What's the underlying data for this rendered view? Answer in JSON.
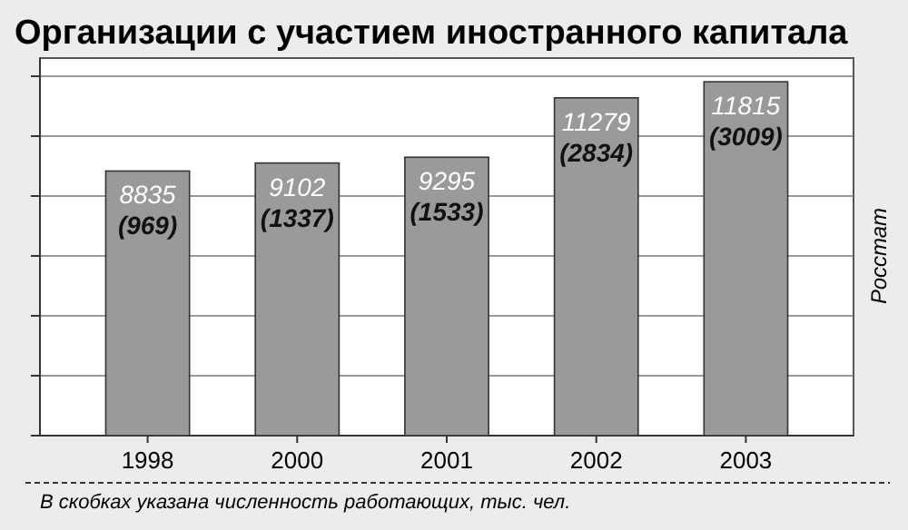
{
  "chart_data": {
    "type": "bar",
    "title": "Организации с участием иностранного капитала",
    "categories": [
      "1998",
      "2000",
      "2001",
      "2002",
      "2003"
    ],
    "values": [
      8835,
      9102,
      9295,
      11279,
      11815
    ],
    "value_labels": [
      "8835\n(969)",
      "9102\n(1337)",
      "9295\n(1533)",
      "11279\n(2834)",
      "11815\n(3009)"
    ],
    "color": "#9a9a9a",
    "ylim": [
      0,
      12000
    ],
    "yticks": [
      {
        "value": 0,
        "label": null
      },
      {
        "value": 2000,
        "label": null
      },
      {
        "value": 4000,
        "label": null
      },
      {
        "value": 6000,
        "label": null
      },
      {
        "value": 8000,
        "label": null
      },
      {
        "value": 10000,
        "label": null
      },
      {
        "value": 12000,
        "label": null
      }
    ],
    "tick_labels": "x",
    "grid": "y",
    "annotations": [
      "Росстат",
      "В скобках указана численность работающих, тыс. чел."
    ]
  }
}
